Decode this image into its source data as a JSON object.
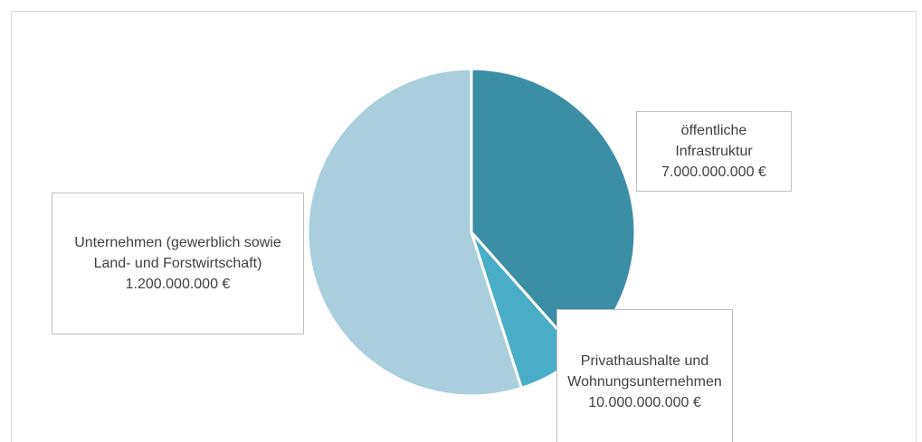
{
  "chart_data": {
    "type": "pie",
    "categories": [
      "öffentliche Infrastruktur",
      "Unternehmen (gewerblich sowie Land- und Forstwirtschaft)",
      "Privathaushalte und Wohnungsunternehmen"
    ],
    "values": [
      7000000000,
      1200000000,
      10000000000
    ],
    "value_labels": [
      "7.000.000.000 €",
      "1.200.000.000 €",
      "10.000.000.000 €"
    ],
    "colors": [
      "#3c8ea7",
      "#4aadc7",
      "#a9cfdc"
    ]
  }
}
